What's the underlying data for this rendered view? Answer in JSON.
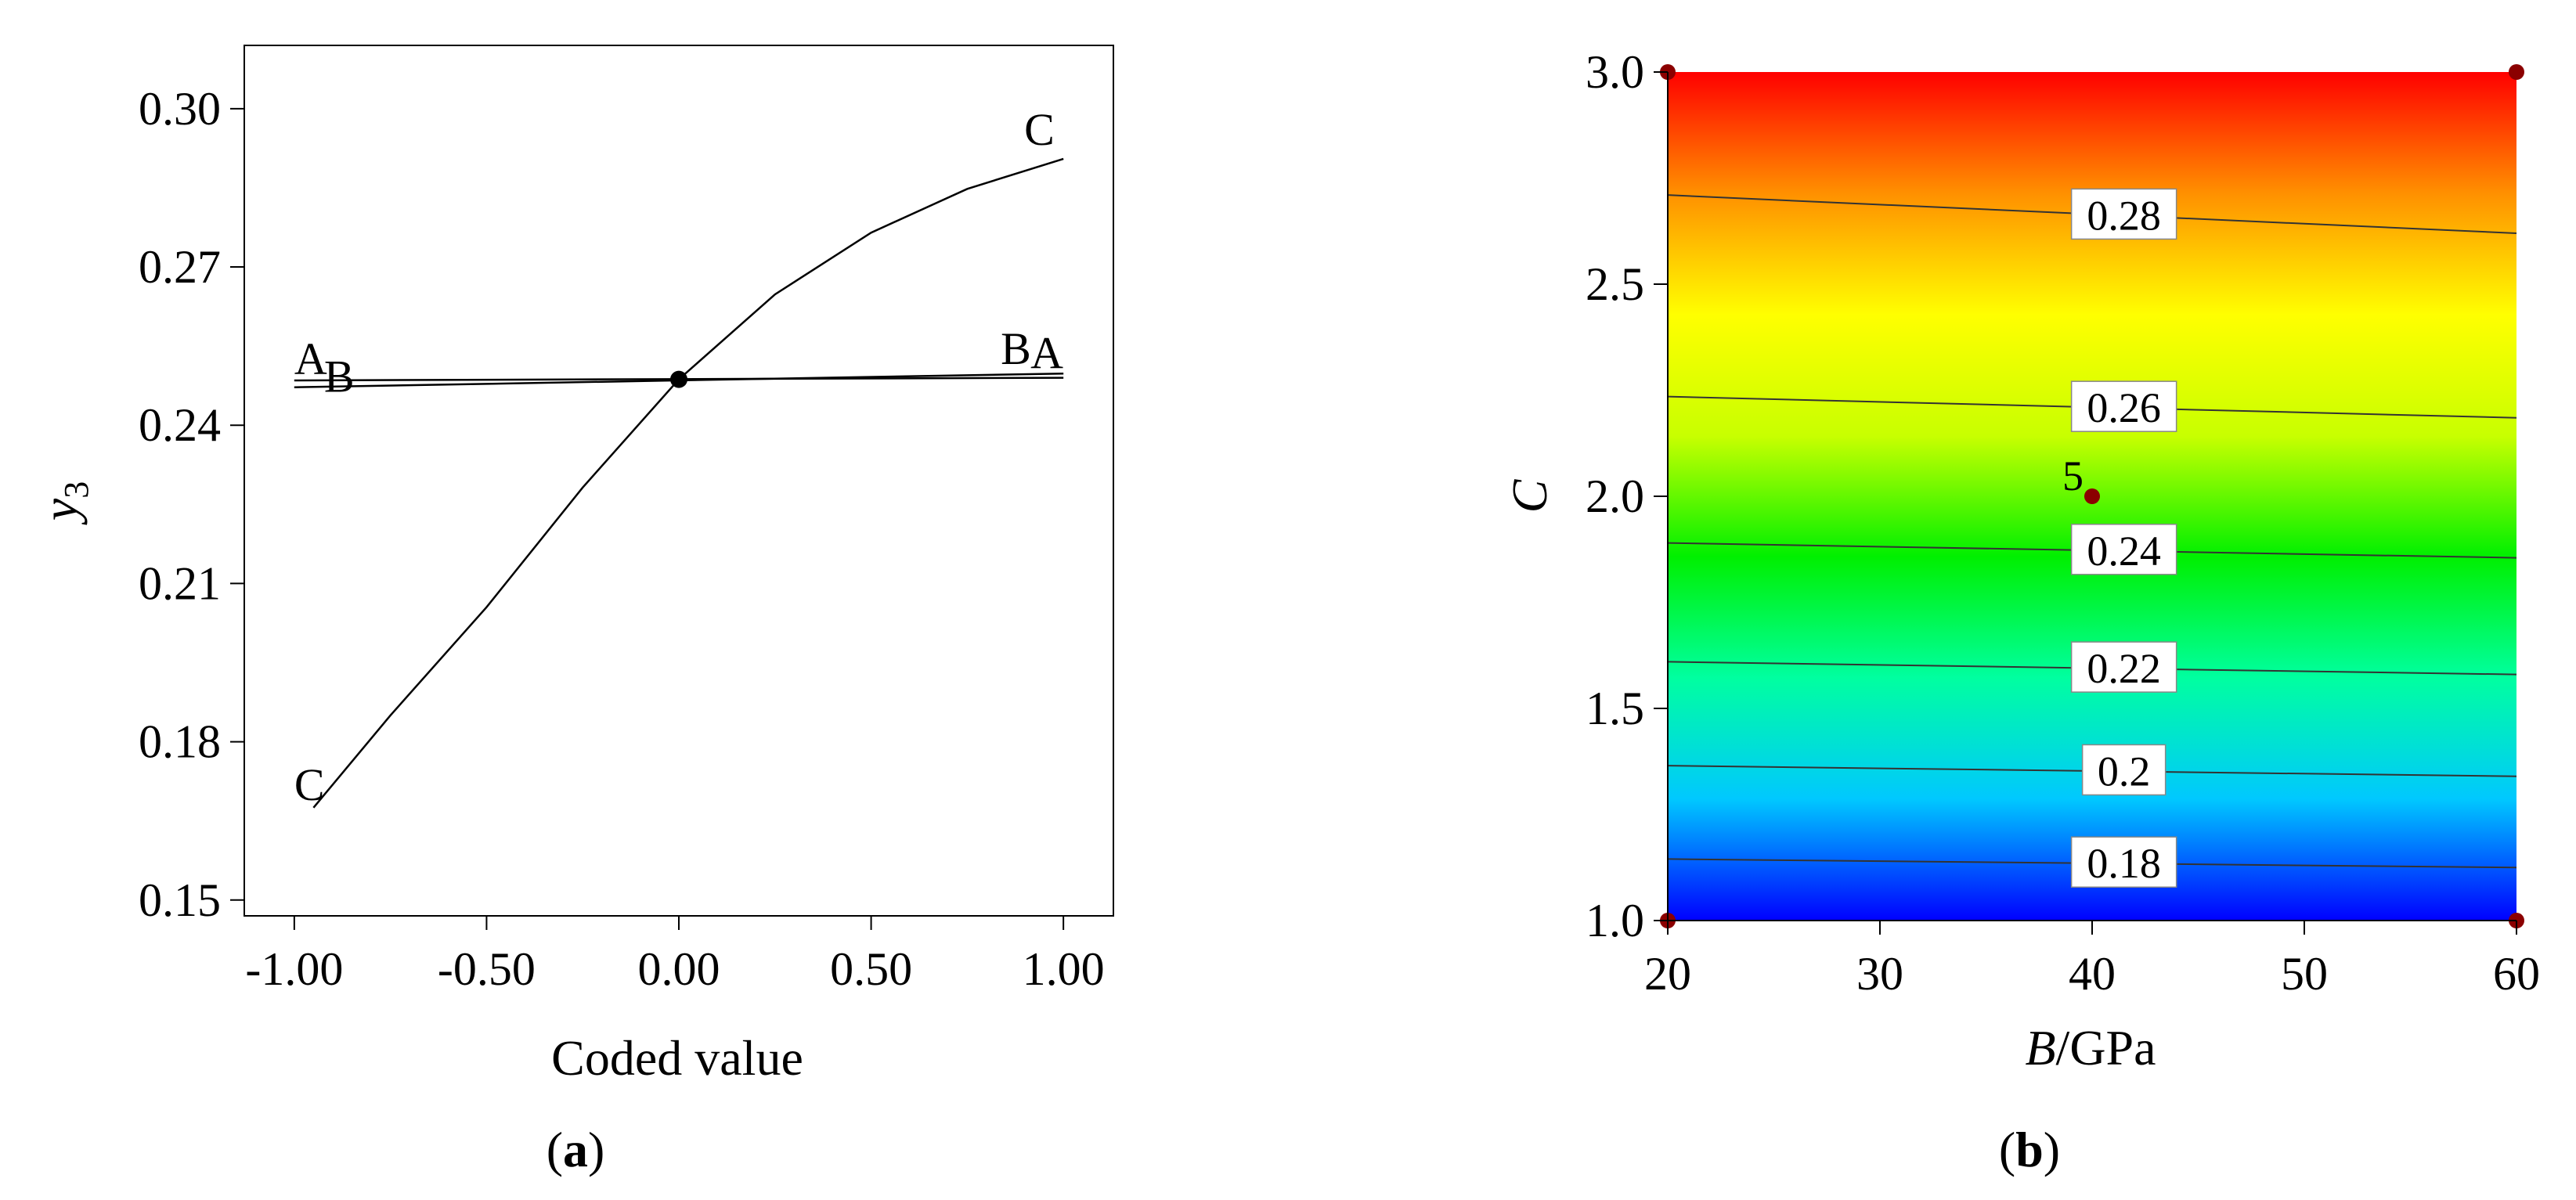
{
  "panels": {
    "a": {
      "label_open": "(",
      "label_letter": "a",
      "label_close": ")"
    },
    "b": {
      "label_open": "(",
      "label_letter": "b",
      "label_close": ")"
    }
  },
  "chart_data": [
    {
      "type": "line",
      "panel": "a",
      "xlabel": "Coded value",
      "ylabel_base": "y",
      "ylabel_sub": "3",
      "xlim": [
        -1.13,
        1.13
      ],
      "ylim": [
        0.147,
        0.312
      ],
      "xticks": [
        -1.0,
        -0.5,
        0.0,
        0.5,
        1.0
      ],
      "xtick_labels": [
        "-1.00",
        "-0.50",
        "0.00",
        "0.50",
        "1.00"
      ],
      "yticks": [
        0.15,
        0.18,
        0.21,
        0.24,
        0.27,
        0.3
      ],
      "ytick_labels": [
        "0.15",
        "0.18",
        "0.21",
        "0.24",
        "0.27",
        "0.30"
      ],
      "grid": false,
      "center_point": {
        "x": 0.0,
        "y": 0.2487
      },
      "series": [
        {
          "name": "A",
          "x": [
            -1.0,
            1.0
          ],
          "y": [
            0.2485,
            0.249
          ],
          "start_label": "A",
          "end_label": "A"
        },
        {
          "name": "B",
          "x": [
            -1.0,
            1.0
          ],
          "y": [
            0.2472,
            0.2498
          ],
          "start_label": "B",
          "end_label": "B"
        },
        {
          "name": "C",
          "x": [
            -0.95,
            -0.75,
            -0.5,
            -0.25,
            0.0,
            0.25,
            0.5,
            0.75,
            1.0
          ],
          "y": [
            0.1675,
            0.185,
            0.2055,
            0.2282,
            0.2487,
            0.2648,
            0.2765,
            0.2848,
            0.2905
          ],
          "start_label": "C",
          "end_label": "C"
        }
      ]
    },
    {
      "type": "heatmap",
      "panel": "b",
      "subtype": "contour",
      "xlabel_italic": "B",
      "xlabel_rest": "/GPa",
      "ylabel": "C",
      "xlim": [
        20,
        60
      ],
      "ylim": [
        1.0,
        3.0
      ],
      "xticks": [
        20,
        30,
        40,
        50,
        60
      ],
      "xtick_labels": [
        "20",
        "30",
        "40",
        "50",
        "60"
      ],
      "yticks": [
        1.0,
        1.5,
        2.0,
        2.5,
        3.0
      ],
      "ytick_labels": [
        "1.0",
        "1.5",
        "2.0",
        "2.5",
        "3.0"
      ],
      "colormap": [
        "#0000ff",
        "#00c8ff",
        "#00ffa0",
        "#00f000",
        "#c8ff00",
        "#ffff00",
        "#ff9000",
        "#ff0000"
      ],
      "contours": [
        {
          "level": 0.18,
          "label": "0.18",
          "y_at_x20": 1.145,
          "y_at_x60": 1.125,
          "label_x": 41.5
        },
        {
          "level": 0.2,
          "label": "0.2",
          "y_at_x20": 1.365,
          "y_at_x60": 1.34,
          "label_x": 41.5
        },
        {
          "level": 0.22,
          "label": "0.22",
          "y_at_x20": 1.61,
          "y_at_x60": 1.58,
          "label_x": 41.5
        },
        {
          "level": 0.24,
          "label": "0.24",
          "y_at_x20": 1.89,
          "y_at_x60": 1.855,
          "label_x": 41.5
        },
        {
          "level": 0.26,
          "label": "0.26",
          "y_at_x20": 2.235,
          "y_at_x60": 2.185,
          "label_x": 41.5
        },
        {
          "level": 0.28,
          "label": "0.28",
          "y_at_x20": 2.71,
          "y_at_x60": 2.62,
          "label_x": 41.5
        }
      ],
      "design_points": [
        {
          "x": 20,
          "y": 1.0
        },
        {
          "x": 60,
          "y": 1.0
        },
        {
          "x": 20,
          "y": 3.0
        },
        {
          "x": 60,
          "y": 3.0
        },
        {
          "x": 40,
          "y": 2.0,
          "label": "5"
        }
      ],
      "point_color": "#8b0000"
    }
  ]
}
